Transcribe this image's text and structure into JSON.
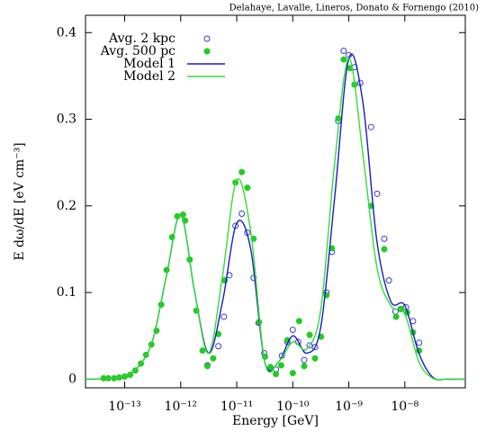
{
  "chart_data": {
    "type": "line",
    "annotation": "Delahaye, Lavalle, Lineros, Donato & Fornengo (2010)",
    "xlabel": "Energy [GeV]",
    "ylabel": "E dω/dE   [eV cm⁻³]",
    "xscale": "log",
    "xlim": [
      2e-14,
      1.2e-07
    ],
    "ylim": [
      -0.01,
      0.42
    ],
    "xticks": [
      {
        "value": 1e-13,
        "label": "10⁻¹³"
      },
      {
        "value": 1e-12,
        "label": "10⁻¹²"
      },
      {
        "value": 1e-11,
        "label": "10⁻¹¹"
      },
      {
        "value": 1e-10,
        "label": "10⁻¹⁰"
      },
      {
        "value": 1e-09,
        "label": "10⁻⁹"
      },
      {
        "value": 1e-08,
        "label": "10⁻⁸"
      }
    ],
    "yticks": [
      0,
      0.1,
      0.2,
      0.3,
      0.4
    ],
    "legend": "upper-left",
    "series": [
      {
        "name": "Avg. 2 kpc",
        "type": "scatter",
        "marker": "open",
        "color": "#3b3bd6",
        "x": [
          3e-12,
          4.7e-12,
          5.9e-12,
          7.4e-12,
          9.5e-12,
          1.23e-11,
          1.55e-11,
          2e-11,
          2.45e-11,
          3.1e-11,
          4e-11,
          5e-11,
          6.4e-11,
          8e-11,
          1e-10,
          1.25e-10,
          1.6e-10,
          2e-10,
          2.5e-10,
          4e-10,
          5e-10,
          6.5e-10,
          8.1e-10,
          1e-09,
          1.26e-09,
          1.6e-09,
          2.5e-09,
          3.2e-09,
          4.3e-09,
          5.2e-09,
          6.8e-09,
          8.5e-09,
          1.05e-08,
          1.4e-08,
          1.8e-08
        ],
        "values": [
          0.016,
          0.038,
          0.072,
          0.12,
          0.177,
          0.191,
          0.169,
          0.117,
          0.065,
          0.03,
          0.013,
          0.011,
          0.027,
          0.043,
          0.057,
          0.043,
          0.022,
          0.039,
          0.037,
          0.1,
          0.147,
          0.298,
          0.379,
          0.374,
          0.36,
          0.342,
          0.291,
          0.214,
          0.162,
          0.114,
          0.078,
          0.081,
          0.083,
          0.067,
          0.042
        ]
      },
      {
        "name": "Avg. 500 pc",
        "type": "scatter",
        "marker": "filled",
        "color": "#22cc22",
        "x": [
          4.2e-14,
          5.1e-14,
          6.5e-14,
          8e-14,
          1e-13,
          1.25e-13,
          1.55e-13,
          1.95e-13,
          2.4e-13,
          3e-13,
          3.7e-13,
          4.5e-13,
          5.6e-13,
          7e-13,
          8.7e-13,
          1.1e-12,
          1.2e-12,
          1.45e-12,
          1.9e-12,
          2.45e-12,
          3e-12,
          3.8e-12,
          4.7e-12,
          6.1e-12,
          9.5e-12,
          1.23e-11,
          1.55e-11,
          2e-11,
          2.5e-11,
          3.2e-11,
          4e-11,
          5e-11,
          6.2e-11,
          8e-11,
          1e-10,
          1.3e-10,
          1.6e-10,
          2e-10,
          2.5e-10,
          3.2e-10,
          4e-10,
          5e-10,
          6.5e-10,
          8.1e-10,
          1.05e-09,
          1.26e-09,
          2.5e-09,
          4.3e-09,
          7e-09,
          8.7e-09,
          1.1e-08,
          1.4e-08,
          1.8e-08
        ],
        "values": [
          0.001,
          0.001,
          0.001,
          0.002,
          0.003,
          0.005,
          0.01,
          0.018,
          0.028,
          0.04,
          0.056,
          0.086,
          0.126,
          0.164,
          0.188,
          0.19,
          0.183,
          0.138,
          0.079,
          0.033,
          0.015,
          0.024,
          0.052,
          0.114,
          0.227,
          0.239,
          0.221,
          0.162,
          0.066,
          0.026,
          0.014,
          0.006,
          0.016,
          0.045,
          0.007,
          0.067,
          0.015,
          0.051,
          0.024,
          0.049,
          0.097,
          0.151,
          0.301,
          0.369,
          0.359,
          0.34,
          0.2,
          0.15,
          0.072,
          0.081,
          0.077,
          0.054,
          0.033
        ]
      },
      {
        "name": "Model 1",
        "type": "line",
        "color": "#1a1acc",
        "x": [
          2e-14,
          3.16e-14,
          5.6e-14,
          1e-13,
          1.78e-13,
          3.16e-13,
          5.6e-13,
          1e-12,
          1.78e-12,
          3.16e-12,
          5.6e-12,
          1e-11,
          1.78e-11,
          3.16e-11,
          5.6e-11,
          1e-10,
          1.78e-10,
          3.16e-10,
          5.6e-10,
          1e-09,
          1.78e-09,
          3.16e-09,
          5.6e-09,
          1e-08,
          1.78e-08,
          3.16e-08,
          5.6e-08,
          1.2e-07
        ],
        "values": [
          0,
          0,
          0.001,
          0.004,
          0.015,
          0.045,
          0.12,
          0.19,
          0.1,
          0.03,
          0.09,
          0.18,
          0.15,
          0.02,
          0.02,
          0.05,
          0.03,
          0.06,
          0.21,
          0.37,
          0.32,
          0.16,
          0.09,
          0.085,
          0.03,
          0.002,
          0,
          0
        ]
      },
      {
        "name": "Model 2",
        "type": "line",
        "color": "#33dd33",
        "x": [
          2e-14,
          3.16e-14,
          5.6e-14,
          1e-13,
          1.78e-13,
          3.16e-13,
          5.6e-13,
          1e-12,
          1.78e-12,
          3.16e-12,
          5.6e-12,
          1e-11,
          1.78e-11,
          3.16e-11,
          5.6e-11,
          1e-10,
          1.78e-10,
          3.16e-10,
          5.6e-10,
          1e-09,
          1.78e-09,
          3.16e-09,
          5.6e-09,
          1e-08,
          1.78e-08,
          3.16e-08,
          5.6e-08,
          1.2e-07
        ],
        "values": [
          0,
          0,
          0.001,
          0.004,
          0.015,
          0.045,
          0.12,
          0.19,
          0.1,
          0.03,
          0.12,
          0.23,
          0.17,
          0.02,
          0.02,
          0.043,
          0.035,
          0.08,
          0.25,
          0.37,
          0.26,
          0.13,
          0.085,
          0.075,
          0.02,
          0.001,
          0,
          0
        ]
      }
    ]
  }
}
